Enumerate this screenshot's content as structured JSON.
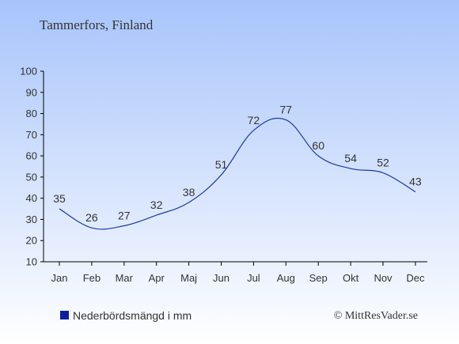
{
  "chart_data": {
    "type": "line",
    "title": "Tammerfors, Finland",
    "categories": [
      "Jan",
      "Feb",
      "Mar",
      "Apr",
      "Maj",
      "Jun",
      "Jul",
      "Aug",
      "Sep",
      "Okt",
      "Nov",
      "Dec"
    ],
    "series": [
      {
        "name": "Nederbördsmängd i mm",
        "values": [
          35,
          26,
          27,
          32,
          38,
          51,
          72,
          77,
          60,
          54,
          52,
          43
        ],
        "color": "#1f3aa8"
      }
    ],
    "yticks": [
      10,
      20,
      30,
      40,
      50,
      60,
      70,
      80,
      90,
      100
    ],
    "ylim": [
      10,
      100
    ],
    "legend_position": "bottom-left",
    "grid": false,
    "credit": "© MittResVader.se"
  },
  "colors": {
    "background_top": "#a7c4fb",
    "background_bottom": "#ffffff",
    "legend_swatch": "#0a1fa0",
    "line": "#1f3aa8",
    "text": "#333333"
  }
}
